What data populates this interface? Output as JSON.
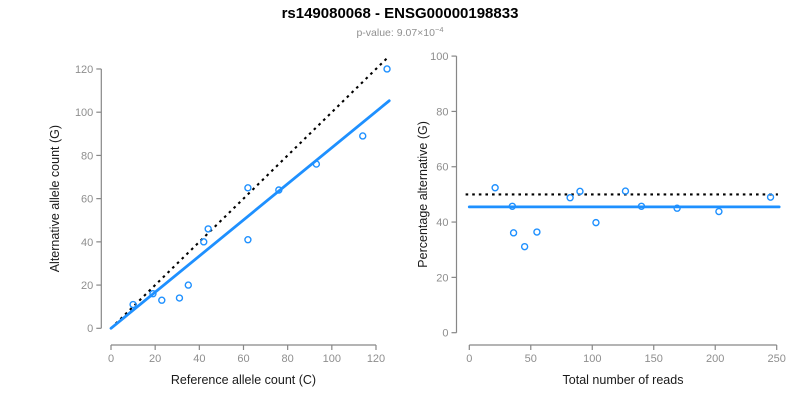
{
  "header": {
    "title": "rs149080068 - ENSG00000198833",
    "subtitle_prefix": "p-value: 9.07×10",
    "subtitle_exponent": "−4"
  },
  "colors": {
    "accent_blue": "#1E90FF",
    "reference_black": "#000000",
    "axis_gray": "#878787",
    "tick_label_gray": "#8E8E8E",
    "axis_title_color": "#1A1A1A"
  },
  "chart_data": [
    {
      "type": "scatter",
      "name": "allele-count-plot",
      "xlabel": "Reference allele count (C)",
      "ylabel": "Alternative allele count (G)",
      "xticks": [
        0,
        20,
        40,
        60,
        80,
        100,
        120
      ],
      "yticks": [
        0,
        20,
        40,
        60,
        80,
        100,
        120
      ],
      "xlim": [
        0,
        126
      ],
      "ylim": [
        0,
        126
      ],
      "grid": false,
      "marker": "open-circle",
      "marker_color": "#1E90FF",
      "points": [
        [
          10,
          11
        ],
        [
          19,
          16
        ],
        [
          23,
          13
        ],
        [
          31,
          14
        ],
        [
          35,
          20
        ],
        [
          42,
          40
        ],
        [
          44,
          46
        ],
        [
          62,
          41
        ],
        [
          62,
          65
        ],
        [
          76,
          64
        ],
        [
          93,
          76
        ],
        [
          114,
          89
        ],
        [
          125,
          120
        ]
      ],
      "lines": [
        {
          "name": "identity-line",
          "style": "dotted",
          "color": "#000000",
          "x1": 0,
          "y1": 0,
          "x2": 125.6,
          "y2": 125.6
        },
        {
          "name": "fitted-ratio-line",
          "style": "solid",
          "color": "#1E90FF",
          "x1": 0,
          "y1": 0,
          "x2": 126,
          "y2": 105.3
        }
      ]
    },
    {
      "type": "scatter",
      "name": "percentage-plot",
      "xlabel": "Total number of reads",
      "ylabel": "Percentage alternative (G)",
      "xticks": [
        0,
        50,
        100,
        150,
        200,
        250
      ],
      "yticks": [
        0,
        20,
        40,
        60,
        80,
        100
      ],
      "xlim": [
        0,
        252
      ],
      "ylim": [
        0,
        101
      ],
      "grid": false,
      "marker": "open-circle",
      "marker_color": "#1E90FF",
      "points": [
        [
          21,
          52.4
        ],
        [
          35,
          45.7
        ],
        [
          36,
          36.1
        ],
        [
          45,
          31.1
        ],
        [
          55,
          36.4
        ],
        [
          82,
          48.8
        ],
        [
          90,
          51.1
        ],
        [
          103,
          39.8
        ],
        [
          127,
          51.2
        ],
        [
          140,
          45.7
        ],
        [
          169,
          45.0
        ],
        [
          203,
          43.8
        ],
        [
          245,
          49.0
        ]
      ],
      "lines": [
        {
          "name": "expected-50pct-line",
          "style": "dotted",
          "color": "#000000",
          "x1": -3,
          "y1": 50,
          "x2": 251,
          "y2": 50
        },
        {
          "name": "mean-percentage-line",
          "style": "solid",
          "color": "#1E90FF",
          "x1": 0,
          "y1": 45.5,
          "x2": 252,
          "y2": 45.5
        }
      ]
    }
  ]
}
